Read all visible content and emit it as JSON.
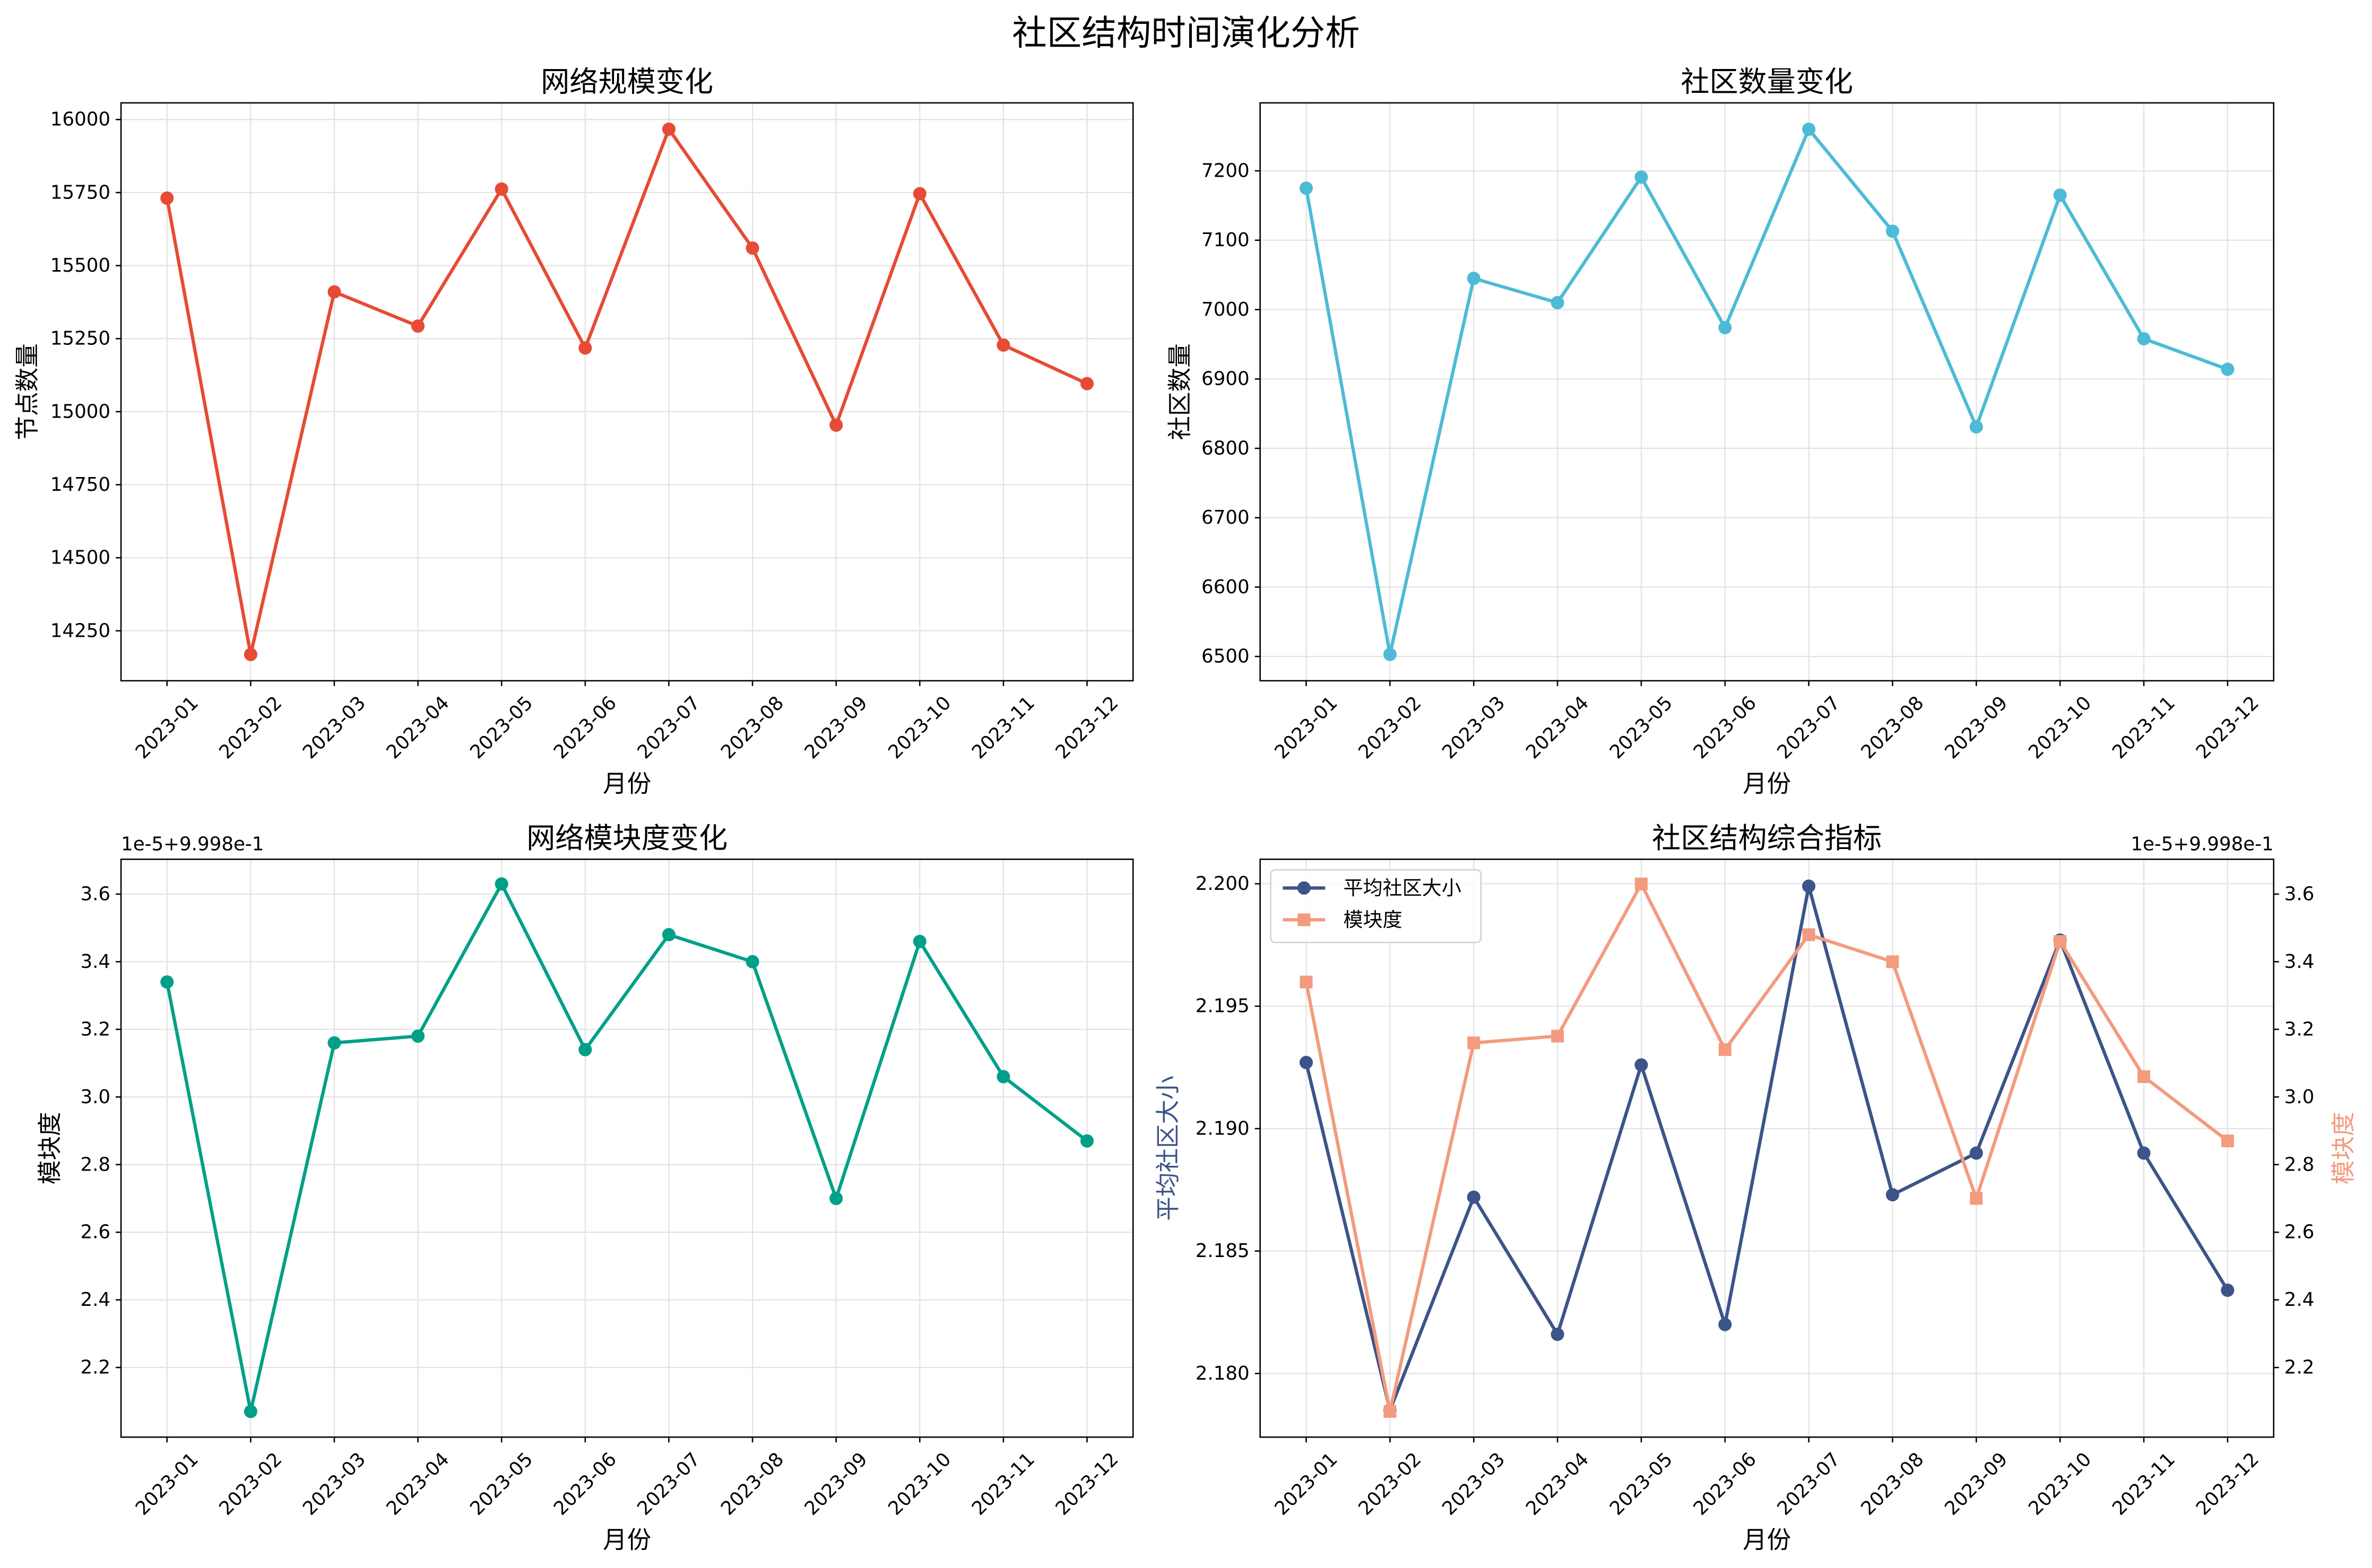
{
  "figure": {
    "title": "社区结构时间演化分析"
  },
  "colors": {
    "grid": "#e3e3e3",
    "axis": "#000000",
    "legend_border": "#cccccc"
  },
  "chart_data": [
    {
      "type": "line",
      "title": "网络规模变化",
      "xlabel": "月份",
      "categories": [
        "2023-01",
        "2023-02",
        "2023-03",
        "2023-04",
        "2023-05",
        "2023-06",
        "2023-07",
        "2023-08",
        "2023-09",
        "2023-10",
        "2023-11",
        "2023-12"
      ],
      "y_axis": {
        "label": "节点数量",
        "ticks": [
          "14250",
          "14500",
          "14750",
          "15000",
          "15250",
          "15500",
          "15750",
          "16000"
        ],
        "lim": [
          14079,
          16057
        ]
      },
      "series": [
        {
          "values": [
            15731,
            14169,
            15410,
            15293,
            15762,
            15218,
            15967,
            15560,
            14954,
            15746,
            15228,
            15096
          ],
          "color": "#E64B35",
          "marker": "circle"
        }
      ],
      "grid": true
    },
    {
      "type": "line",
      "title": "社区数量变化",
      "xlabel": "月份",
      "categories": [
        "2023-01",
        "2023-02",
        "2023-03",
        "2023-04",
        "2023-05",
        "2023-06",
        "2023-07",
        "2023-08",
        "2023-09",
        "2023-10",
        "2023-11",
        "2023-12"
      ],
      "y_axis": {
        "label": "社区数量",
        "ticks": [
          "6500",
          "6600",
          "6700",
          "6800",
          "6900",
          "7000",
          "7100",
          "7200"
        ],
        "lim": [
          6465,
          7298
        ]
      },
      "series": [
        {
          "values": [
            7175,
            6503,
            7045,
            7010,
            7191,
            6974,
            7260,
            7113,
            6831,
            7165,
            6958,
            6914
          ],
          "color": "#4DBBD5",
          "marker": "circle"
        }
      ],
      "grid": true
    },
    {
      "type": "line",
      "title": "网络模块度变化",
      "xlabel": "月份",
      "categories": [
        "2023-01",
        "2023-02",
        "2023-03",
        "2023-04",
        "2023-05",
        "2023-06",
        "2023-07",
        "2023-08",
        "2023-09",
        "2023-10",
        "2023-11",
        "2023-12"
      ],
      "y_axis": {
        "label": "模块度",
        "ticks": [
          "2.2",
          "2.4",
          "2.6",
          "2.8",
          "3.0",
          "3.2",
          "3.4",
          "3.6"
        ],
        "lim": [
          1.994,
          3.703
        ],
        "offset_text": "1e-5+9.998e-1"
      },
      "series": [
        {
          "values": [
            3.34,
            2.07,
            3.16,
            3.18,
            3.63,
            3.14,
            3.48,
            3.4,
            2.7,
            3.46,
            3.06,
            2.87
          ],
          "color": "#00A087",
          "marker": "circle"
        }
      ],
      "grid": true
    },
    {
      "type": "line",
      "title": "社区结构综合指标",
      "xlabel": "月份",
      "categories": [
        "2023-01",
        "2023-02",
        "2023-03",
        "2023-04",
        "2023-05",
        "2023-06",
        "2023-07",
        "2023-08",
        "2023-09",
        "2023-10",
        "2023-11",
        "2023-12"
      ],
      "y_axis": {
        "label": "平均社区大小",
        "label_color": "#3C5488",
        "ticks": [
          "2.180",
          "2.185",
          "2.190",
          "2.195",
          "2.200"
        ],
        "lim": [
          2.1774,
          2.201
        ]
      },
      "y2_axis": {
        "label": "模块度",
        "label_color": "#F39B7F",
        "ticks": [
          "2.2",
          "2.4",
          "2.6",
          "2.8",
          "3.0",
          "3.2",
          "3.4",
          "3.6"
        ],
        "lim": [
          1.994,
          3.703
        ],
        "offset_text": "1e-5+9.998e-1"
      },
      "series": [
        {
          "name": "平均社区大小",
          "axis": "left",
          "values": [
            2.1927,
            2.1785,
            2.1872,
            2.1816,
            2.1926,
            2.182,
            2.1999,
            2.1873,
            2.189,
            2.1977,
            2.189,
            2.1834
          ],
          "color": "#3C5488",
          "marker": "circle"
        },
        {
          "name": "模块度",
          "axis": "right",
          "values": [
            3.34,
            2.07,
            3.16,
            3.18,
            3.63,
            3.14,
            3.48,
            3.4,
            2.7,
            3.46,
            3.06,
            2.87
          ],
          "color": "#F39B7F",
          "marker": "square"
        }
      ],
      "legend": "upper left",
      "grid": true
    }
  ]
}
